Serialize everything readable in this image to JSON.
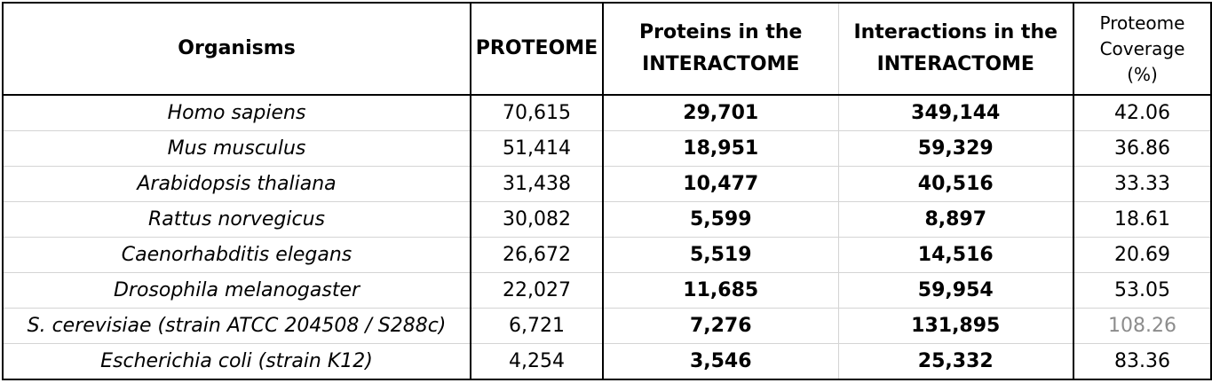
{
  "table": {
    "headers": {
      "organisms": "Organisms",
      "proteome": "PROTEOME",
      "proteins_line1": "Proteins in the",
      "proteins_line2": "INTERACTOME",
      "interactions_line1": "Interactions in the",
      "interactions_line2": "INTERACTOME",
      "coverage_line1": "Proteome",
      "coverage_line2": "Coverage",
      "coverage_line3": "(%)"
    },
    "rows": [
      {
        "organism": "Homo sapiens",
        "proteome": "70,615",
        "proteins": "29,701",
        "interactions": "349,144",
        "coverage": "42.06"
      },
      {
        "organism": "Mus musculus",
        "proteome": "51,414",
        "proteins": "18,951",
        "interactions": "59,329",
        "coverage": "36.86"
      },
      {
        "organism": "Arabidopsis thaliana",
        "proteome": "31,438",
        "proteins": "10,477",
        "interactions": "40,516",
        "coverage": "33.33"
      },
      {
        "organism": "Rattus norvegicus",
        "proteome": "30,082",
        "proteins": "5,599",
        "interactions": "8,897",
        "coverage": "18.61"
      },
      {
        "organism": "Caenorhabditis elegans",
        "proteome": "26,672",
        "proteins": "5,519",
        "interactions": "14,516",
        "coverage": "20.69"
      },
      {
        "organism": "Drosophila melanogaster",
        "proteome": "22,027",
        "proteins": "11,685",
        "interactions": "59,954",
        "coverage": "53.05"
      },
      {
        "organism": "S. cerevisiae (strain ATCC 204508 / S288c)",
        "proteome": "6,721",
        "proteins": "7,276",
        "interactions": "131,895",
        "coverage": "108.26"
      },
      {
        "organism": "Escherichia coli (strain K12)",
        "proteome": "4,254",
        "proteins": "3,546",
        "interactions": "25,332",
        "coverage": "83.36"
      }
    ]
  },
  "colors": {
    "text": "#000000",
    "muted_coverage": "#8c8c8c",
    "grid_line": "#d4d4d4",
    "border": "#000000"
  }
}
